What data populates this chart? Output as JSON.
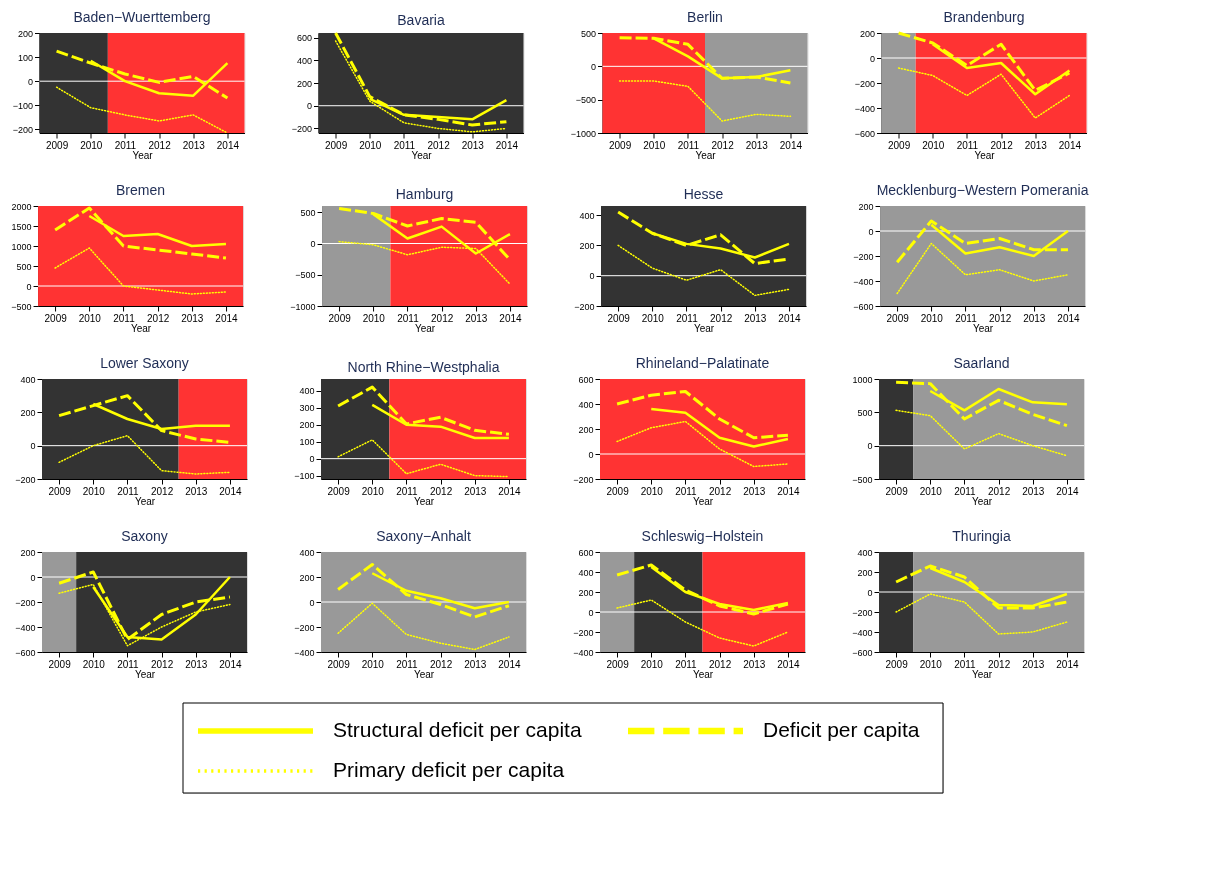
{
  "chart_data": [
    {
      "type": "line",
      "title": "Baden−Wuerttemberg",
      "xlabel": "Year",
      "x": [
        2009,
        2010,
        2011,
        2012,
        2013,
        2014
      ],
      "xlim": [
        2008.5,
        2014.5
      ],
      "xticks": [
        2009,
        2010,
        2011,
        2012,
        2013,
        2014
      ],
      "ylim": [
        -215,
        200
      ],
      "yticks": [
        -200,
        -100,
        0,
        100,
        200
      ],
      "legend": "bottom",
      "bands": [
        {
          "axis": "x",
          "from": 2008.5,
          "to": 2010.5,
          "color": "#333333"
        },
        {
          "axis": "x",
          "from": 2010.5,
          "to": 2014.5,
          "color": "#ff3333"
        }
      ],
      "ref_lines": [
        {
          "axis": "y",
          "value": 0,
          "color": "#ffffff"
        }
      ],
      "series": [
        {
          "name": "Structural deficit per capita",
          "color": "#ffff00",
          "line_style": "solid",
          "values": [
            null,
            85,
            0,
            -50,
            -60,
            75
          ]
        },
        {
          "name": "Deficit per capita",
          "color": "#ffff00",
          "line_style": "dashed",
          "values": [
            125,
            75,
            30,
            -5,
            20,
            -70
          ]
        },
        {
          "name": "Primary deficit per capita",
          "color": "#ffff00",
          "line_style": "dotted",
          "values": [
            -25,
            -110,
            -140,
            -165,
            -140,
            -215
          ]
        }
      ]
    },
    {
      "type": "line",
      "title": "Bavaria",
      "xlabel": "Year",
      "x": [
        2009,
        2010,
        2011,
        2012,
        2013,
        2014
      ],
      "xlim": [
        2008.5,
        2014.5
      ],
      "xticks": [
        2009,
        2010,
        2011,
        2012,
        2013,
        2014
      ],
      "ylim": [
        -240,
        640
      ],
      "yticks": [
        -200,
        0,
        200,
        400,
        600
      ],
      "bands": [
        {
          "axis": "x",
          "from": 2008.5,
          "to": 2014.5,
          "color": "#333333"
        }
      ],
      "ref_lines": [
        {
          "axis": "y",
          "value": 0,
          "color": "#ffffff"
        }
      ],
      "series": [
        {
          "color": "#ffff00",
          "line_style": "solid",
          "values": [
            null,
            60,
            -80,
            -100,
            -120,
            50
          ]
        },
        {
          "color": "#ffff00",
          "line_style": "dashed",
          "values": [
            640,
            80,
            -80,
            -120,
            -170,
            -140
          ]
        },
        {
          "color": "#ffff00",
          "line_style": "dotted",
          "values": [
            570,
            40,
            -150,
            -200,
            -230,
            -200
          ]
        }
      ]
    },
    {
      "type": "line",
      "title": "Berlin",
      "xlabel": "Year",
      "x": [
        2009,
        2010,
        2011,
        2012,
        2013,
        2014
      ],
      "xlim": [
        2008.5,
        2014.5
      ],
      "xticks": [
        2009,
        2010,
        2011,
        2012,
        2013,
        2014
      ],
      "ylim": [
        -1000,
        500
      ],
      "yticks": [
        -1000,
        -500,
        0,
        500
      ],
      "bands": [
        {
          "axis": "x",
          "from": 2008.5,
          "to": 2011.5,
          "color": "#ff3333"
        },
        {
          "axis": "x",
          "from": 2011.5,
          "to": 2014.5,
          "color": "#999999"
        }
      ],
      "ref_lines": [
        {
          "axis": "y",
          "value": 0,
          "color": "#ffffff"
        }
      ],
      "series": [
        {
          "color": "#ffff00",
          "line_style": "solid",
          "values": [
            null,
            420,
            150,
            -180,
            -160,
            -60
          ]
        },
        {
          "color": "#ffff00",
          "line_style": "dashed",
          "values": [
            430,
            420,
            330,
            -180,
            -160,
            -250
          ]
        },
        {
          "color": "#ffff00",
          "line_style": "dotted",
          "values": [
            -220,
            -220,
            -300,
            -820,
            -720,
            -750
          ]
        }
      ]
    },
    {
      "type": "line",
      "title": "Brandenburg",
      "xlabel": "Year",
      "x": [
        2009,
        2010,
        2011,
        2012,
        2013,
        2014
      ],
      "xlim": [
        2008.5,
        2014.5
      ],
      "xticks": [
        2009,
        2010,
        2011,
        2012,
        2013,
        2014
      ],
      "ylim": [
        -600,
        200
      ],
      "yticks": [
        -600,
        -400,
        -200,
        0,
        200
      ],
      "bands": [
        {
          "axis": "x",
          "from": 2008.5,
          "to": 2009.5,
          "color": "#999999"
        },
        {
          "axis": "x",
          "from": 2009.5,
          "to": 2014.5,
          "color": "#ff3333"
        }
      ],
      "ref_lines": [
        {
          "axis": "y",
          "value": 0,
          "color": "#ffffff"
        }
      ],
      "series": [
        {
          "color": "#ffff00",
          "line_style": "solid",
          "values": [
            null,
            110,
            -80,
            -40,
            -290,
            -100
          ]
        },
        {
          "color": "#ffff00",
          "line_style": "dashed",
          "values": [
            200,
            120,
            -60,
            110,
            -260,
            -120
          ]
        },
        {
          "color": "#ffff00",
          "line_style": "dotted",
          "values": [
            -80,
            -140,
            -300,
            -130,
            -480,
            -300
          ]
        }
      ]
    },
    {
      "type": "line",
      "title": "Bremen",
      "xlabel": "Year",
      "x": [
        2009,
        2010,
        2011,
        2012,
        2013,
        2014
      ],
      "xlim": [
        2008.5,
        2014.5
      ],
      "xticks": [
        2009,
        2010,
        2011,
        2012,
        2013,
        2014
      ],
      "ylim": [
        -500,
        2000
      ],
      "yticks": [
        -500,
        0,
        500,
        1000,
        1500,
        2000
      ],
      "bands": [
        {
          "axis": "x",
          "from": 2008.5,
          "to": 2014.5,
          "color": "#ff3333"
        }
      ],
      "ref_lines": [
        {
          "axis": "y",
          "value": 0,
          "color": "#ffffff"
        }
      ],
      "series": [
        {
          "color": "#ffff00",
          "line_style": "solid",
          "values": [
            null,
            1750,
            1250,
            1300,
            1000,
            1050
          ]
        },
        {
          "color": "#ffff00",
          "line_style": "dashed",
          "values": [
            1400,
            1950,
            1000,
            900,
            800,
            700
          ]
        },
        {
          "color": "#ffff00",
          "line_style": "dotted",
          "values": [
            450,
            950,
            0,
            -100,
            -200,
            -150
          ]
        }
      ]
    },
    {
      "type": "line",
      "title": "Hamburg",
      "xlabel": "Year",
      "x": [
        2009,
        2010,
        2011,
        2012,
        2013,
        2014
      ],
      "xlim": [
        2008.5,
        2014.5
      ],
      "xticks": [
        2009,
        2010,
        2011,
        2012,
        2013,
        2014
      ],
      "ylim": [
        -1000,
        600
      ],
      "yticks": [
        -1000,
        -500,
        0,
        500
      ],
      "bands": [
        {
          "axis": "x",
          "from": 2008.5,
          "to": 2010.5,
          "color": "#999999"
        },
        {
          "axis": "x",
          "from": 2010.5,
          "to": 2014.5,
          "color": "#ff3333"
        }
      ],
      "ref_lines": [
        {
          "axis": "y",
          "value": 0,
          "color": "#ffffff"
        }
      ],
      "series": [
        {
          "color": "#ffff00",
          "line_style": "solid",
          "values": [
            null,
            470,
            80,
            270,
            -160,
            150
          ]
        },
        {
          "color": "#ffff00",
          "line_style": "dashed",
          "values": [
            560,
            480,
            280,
            400,
            340,
            -260
          ]
        },
        {
          "color": "#ffff00",
          "line_style": "dotted",
          "values": [
            30,
            -20,
            -180,
            -60,
            -80,
            -650
          ]
        }
      ]
    },
    {
      "type": "line",
      "title": "Hesse",
      "xlabel": "Year",
      "x": [
        2009,
        2010,
        2011,
        2012,
        2013,
        2014
      ],
      "xlim": [
        2008.5,
        2014.5
      ],
      "xticks": [
        2009,
        2010,
        2011,
        2012,
        2013,
        2014
      ],
      "ylim": [
        -200,
        460
      ],
      "yticks": [
        -200,
        0,
        200,
        400
      ],
      "bands": [
        {
          "axis": "x",
          "from": 2008.5,
          "to": 2014.5,
          "color": "#333333"
        }
      ],
      "ref_lines": [
        {
          "axis": "y",
          "value": 0,
          "color": "#ffffff"
        }
      ],
      "series": [
        {
          "color": "#ffff00",
          "line_style": "solid",
          "values": [
            null,
            280,
            210,
            180,
            120,
            210
          ]
        },
        {
          "color": "#ffff00",
          "line_style": "dashed",
          "values": [
            420,
            280,
            200,
            270,
            80,
            110
          ]
        },
        {
          "color": "#ffff00",
          "line_style": "dotted",
          "values": [
            200,
            50,
            -30,
            40,
            -130,
            -90
          ]
        }
      ]
    },
    {
      "type": "line",
      "title": "Mecklenburg−Western Pomerania",
      "xlabel": "Year",
      "x": [
        2009,
        2010,
        2011,
        2012,
        2013,
        2014
      ],
      "xlim": [
        2008.5,
        2014.5
      ],
      "xticks": [
        2009,
        2010,
        2011,
        2012,
        2013,
        2014
      ],
      "ylim": [
        -600,
        200
      ],
      "yticks": [
        -600,
        -400,
        -200,
        0,
        200
      ],
      "bands": [
        {
          "axis": "x",
          "from": 2008.5,
          "to": 2014.5,
          "color": "#999999"
        }
      ],
      "ref_lines": [
        {
          "axis": "y",
          "value": 0,
          "color": "#ffffff"
        }
      ],
      "series": [
        {
          "color": "#ffff00",
          "line_style": "solid",
          "values": [
            null,
            50,
            -180,
            -130,
            -200,
            0
          ]
        },
        {
          "color": "#ffff00",
          "line_style": "dashed",
          "values": [
            -250,
            80,
            -100,
            -60,
            -150,
            -150
          ]
        },
        {
          "color": "#ffff00",
          "line_style": "dotted",
          "values": [
            -500,
            -100,
            -350,
            -310,
            -400,
            -350
          ]
        }
      ]
    },
    {
      "type": "line",
      "title": "Lower Saxony",
      "xlabel": "Year",
      "x": [
        2009,
        2010,
        2011,
        2012,
        2013,
        2014
      ],
      "xlim": [
        2008.5,
        2014.5
      ],
      "xticks": [
        2009,
        2010,
        2011,
        2012,
        2013,
        2014
      ],
      "ylim": [
        -200,
        400
      ],
      "yticks": [
        -200,
        0,
        200,
        400
      ],
      "bands": [
        {
          "axis": "x",
          "from": 2008.5,
          "to": 2012.5,
          "color": "#333333"
        },
        {
          "axis": "x",
          "from": 2012.5,
          "to": 2014.5,
          "color": "#ff3333"
        }
      ],
      "ref_lines": [
        {
          "axis": "y",
          "value": 0,
          "color": "#ffffff"
        }
      ],
      "series": [
        {
          "color": "#ffff00",
          "line_style": "solid",
          "values": [
            null,
            250,
            160,
            100,
            120,
            120
          ]
        },
        {
          "color": "#ffff00",
          "line_style": "dashed",
          "values": [
            180,
            240,
            300,
            90,
            40,
            20
          ]
        },
        {
          "color": "#ffff00",
          "line_style": "dotted",
          "values": [
            -100,
            0,
            60,
            -150,
            -170,
            -160
          ]
        }
      ]
    },
    {
      "type": "line",
      "title": "North Rhine−Westphalia",
      "xlabel": "Year",
      "x": [
        2009,
        2010,
        2011,
        2012,
        2013,
        2014
      ],
      "xlim": [
        2008.5,
        2014.5
      ],
      "xticks": [
        2009,
        2010,
        2011,
        2012,
        2013,
        2014
      ],
      "ylim": [
        -120,
        470
      ],
      "yticks": [
        -100,
        0,
        100,
        200,
        300,
        400
      ],
      "bands": [
        {
          "axis": "x",
          "from": 2008.5,
          "to": 2010.5,
          "color": "#333333"
        },
        {
          "axis": "x",
          "from": 2010.5,
          "to": 2014.5,
          "color": "#ff3333"
        }
      ],
      "ref_lines": [
        {
          "axis": "y",
          "value": 0,
          "color": "#ffffff"
        }
      ],
      "series": [
        {
          "color": "#ffff00",
          "line_style": "solid",
          "values": [
            null,
            317,
            200,
            189,
            122,
            122
          ]
        },
        {
          "color": "#ffff00",
          "line_style": "dashed",
          "values": [
            311,
            422,
            205,
            244,
            167,
            144
          ]
        },
        {
          "color": "#ffff00",
          "line_style": "dotted",
          "values": [
            11,
            111,
            -89,
            -33,
            -100,
            -106
          ]
        }
      ]
    },
    {
      "type": "line",
      "title": "Rhineland−Palatinate",
      "xlabel": "Year",
      "x": [
        2009,
        2010,
        2011,
        2012,
        2013,
        2014
      ],
      "xlim": [
        2008.5,
        2014.5
      ],
      "xticks": [
        2009,
        2010,
        2011,
        2012,
        2013,
        2014
      ],
      "ylim": [
        -200,
        600
      ],
      "yticks": [
        -200,
        0,
        200,
        400,
        600
      ],
      "bands": [
        {
          "axis": "x",
          "from": 2008.5,
          "to": 2014.5,
          "color": "#ff3333"
        }
      ],
      "ref_lines": [
        {
          "axis": "y",
          "value": 0,
          "color": "#ffffff"
        }
      ],
      "series": [
        {
          "color": "#ffff00",
          "line_style": "solid",
          "values": [
            null,
            360,
            330,
            130,
            60,
            120
          ]
        },
        {
          "color": "#ffff00",
          "line_style": "dashed",
          "values": [
            400,
            470,
            500,
            280,
            130,
            150
          ]
        },
        {
          "color": "#ffff00",
          "line_style": "dotted",
          "values": [
            100,
            210,
            260,
            40,
            -100,
            -80
          ]
        }
      ]
    },
    {
      "type": "line",
      "title": "Saarland",
      "xlabel": "Year",
      "x": [
        2009,
        2010,
        2011,
        2012,
        2013,
        2014
      ],
      "xlim": [
        2008.5,
        2014.5
      ],
      "xticks": [
        2009,
        2010,
        2011,
        2012,
        2013,
        2014
      ],
      "ylim": [
        -500,
        1000
      ],
      "yticks": [
        -500,
        0,
        500,
        1000
      ],
      "bands": [
        {
          "axis": "x",
          "from": 2008.5,
          "to": 2009.5,
          "color": "#333333"
        },
        {
          "axis": "x",
          "from": 2009.5,
          "to": 2014.5,
          "color": "#999999"
        }
      ],
      "ref_lines": [
        {
          "axis": "y",
          "value": 0,
          "color": "#ffffff"
        }
      ],
      "series": [
        {
          "color": "#ffff00",
          "line_style": "solid",
          "values": [
            null,
            820,
            530,
            850,
            650,
            620
          ]
        },
        {
          "color": "#ffff00",
          "line_style": "dashed",
          "values": [
            950,
            930,
            400,
            680,
            470,
            300
          ]
        },
        {
          "color": "#ffff00",
          "line_style": "dotted",
          "values": [
            530,
            450,
            -50,
            180,
            0,
            -150
          ]
        }
      ]
    },
    {
      "type": "line",
      "title": "Saxony",
      "xlabel": "Year",
      "x": [
        2009,
        2010,
        2011,
        2012,
        2013,
        2014
      ],
      "xlim": [
        2008.5,
        2014.5
      ],
      "xticks": [
        2009,
        2010,
        2011,
        2012,
        2013,
        2014
      ],
      "ylim": [
        -600,
        200
      ],
      "yticks": [
        -600,
        -400,
        -200,
        0,
        200
      ],
      "bands": [
        {
          "axis": "x",
          "from": 2008.5,
          "to": 2009.5,
          "color": "#999999"
        },
        {
          "axis": "x",
          "from": 2009.5,
          "to": 2014.5,
          "color": "#333333"
        }
      ],
      "ref_lines": [
        {
          "axis": "y",
          "value": 0,
          "color": "#ffffff"
        }
      ],
      "series": [
        {
          "color": "#ffff00",
          "line_style": "solid",
          "values": [
            null,
            -80,
            -480,
            -500,
            -300,
            0
          ]
        },
        {
          "color": "#ffff00",
          "line_style": "dashed",
          "values": [
            -50,
            40,
            -500,
            -300,
            -200,
            -160
          ]
        },
        {
          "color": "#ffff00",
          "line_style": "dotted",
          "values": [
            -130,
            -60,
            -550,
            -400,
            -280,
            -220
          ]
        }
      ]
    },
    {
      "type": "line",
      "title": "Saxony−Anhalt",
      "xlabel": "Year",
      "x": [
        2009,
        2010,
        2011,
        2012,
        2013,
        2014
      ],
      "xlim": [
        2008.5,
        2014.5
      ],
      "xticks": [
        2009,
        2010,
        2011,
        2012,
        2013,
        2014
      ],
      "ylim": [
        -400,
        400
      ],
      "yticks": [
        -400,
        -200,
        0,
        200,
        400
      ],
      "bands": [
        {
          "axis": "x",
          "from": 2008.5,
          "to": 2014.5,
          "color": "#999999"
        }
      ],
      "ref_lines": [
        {
          "axis": "y",
          "value": 0,
          "color": "#ffffff"
        }
      ],
      "series": [
        {
          "color": "#ffff00",
          "line_style": "solid",
          "values": [
            null,
            230,
            90,
            30,
            -50,
            0
          ]
        },
        {
          "color": "#ffff00",
          "line_style": "dashed",
          "values": [
            100,
            300,
            60,
            -20,
            -120,
            -30
          ]
        },
        {
          "color": "#ffff00",
          "line_style": "dotted",
          "values": [
            -250,
            -10,
            -260,
            -330,
            -380,
            -280
          ]
        }
      ]
    },
    {
      "type": "line",
      "title": "Schleswig−Holstein",
      "xlabel": "Year",
      "x": [
        2009,
        2010,
        2011,
        2012,
        2013,
        2014
      ],
      "xlim": [
        2008.5,
        2014.5
      ],
      "xticks": [
        2009,
        2010,
        2011,
        2012,
        2013,
        2014
      ],
      "ylim": [
        -400,
        600
      ],
      "yticks": [
        -400,
        -200,
        0,
        200,
        400,
        600
      ],
      "bands": [
        {
          "axis": "x",
          "from": 2008.5,
          "to": 2009.5,
          "color": "#999999"
        },
        {
          "axis": "x",
          "from": 2009.5,
          "to": 2011.5,
          "color": "#333333"
        },
        {
          "axis": "x",
          "from": 2011.5,
          "to": 2014.5,
          "color": "#ff3333"
        }
      ],
      "ref_lines": [
        {
          "axis": "y",
          "value": 0,
          "color": "#ffffff"
        }
      ],
      "series": [
        {
          "color": "#ffff00",
          "line_style": "solid",
          "values": [
            null,
            450,
            200,
            80,
            20,
            90
          ]
        },
        {
          "color": "#ffff00",
          "line_style": "dashed",
          "values": [
            370,
            470,
            220,
            60,
            -20,
            80
          ]
        },
        {
          "color": "#ffff00",
          "line_style": "dotted",
          "values": [
            40,
            120,
            -100,
            -260,
            -340,
            -200
          ]
        }
      ]
    },
    {
      "type": "line",
      "title": "Thuringia",
      "xlabel": "Year",
      "x": [
        2009,
        2010,
        2011,
        2012,
        2013,
        2014
      ],
      "xlim": [
        2008.5,
        2014.5
      ],
      "xticks": [
        2009,
        2010,
        2011,
        2012,
        2013,
        2014
      ],
      "ylim": [
        -600,
        400
      ],
      "yticks": [
        -600,
        -400,
        -200,
        0,
        200,
        400
      ],
      "bands": [
        {
          "axis": "x",
          "from": 2008.5,
          "to": 2009.5,
          "color": "#333333"
        },
        {
          "axis": "x",
          "from": 2009.5,
          "to": 2014.5,
          "color": "#999999"
        }
      ],
      "ref_lines": [
        {
          "axis": "y",
          "value": 0,
          "color": "#ffffff"
        }
      ],
      "series": [
        {
          "color": "#ffff00",
          "line_style": "solid",
          "values": [
            null,
            240,
            100,
            -130,
            -140,
            -20
          ]
        },
        {
          "color": "#ffff00",
          "line_style": "dashed",
          "values": [
            100,
            260,
            150,
            -160,
            -160,
            -100
          ]
        },
        {
          "color": "#ffff00",
          "line_style": "dotted",
          "values": [
            -200,
            -20,
            -100,
            -420,
            -400,
            -300
          ]
        }
      ]
    }
  ]
}
